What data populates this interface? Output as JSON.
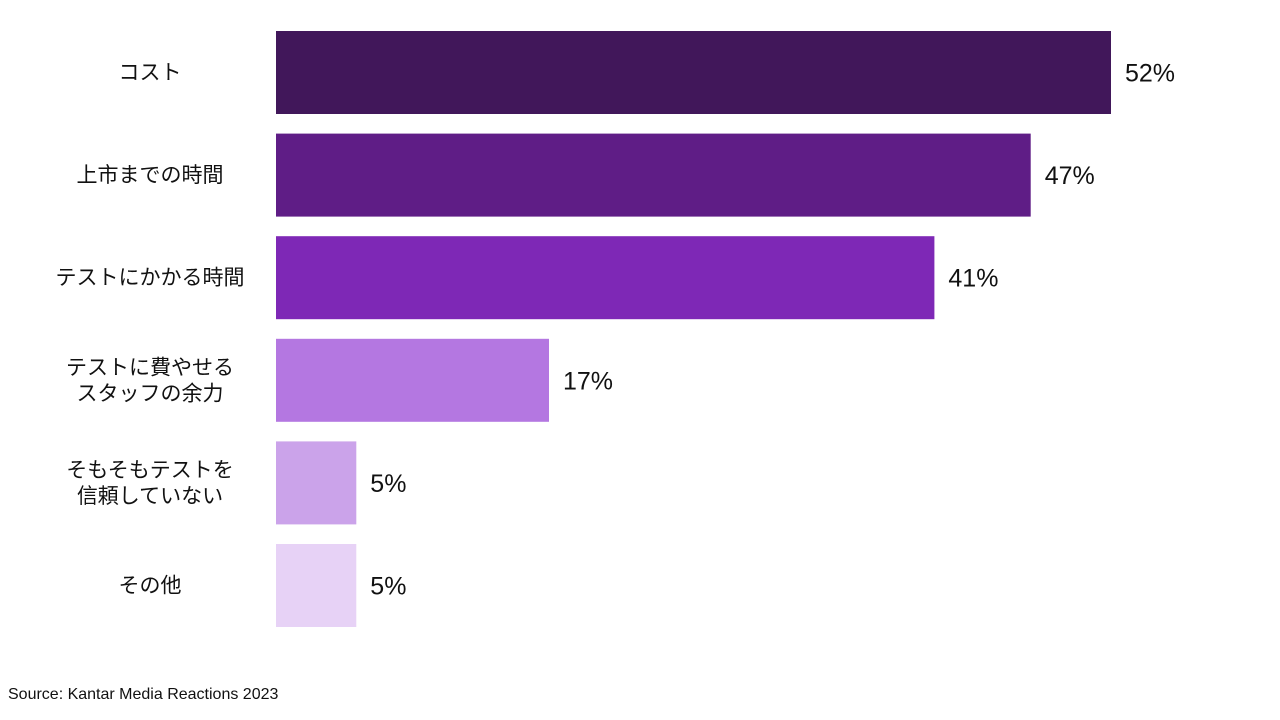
{
  "chart_data": {
    "type": "bar",
    "orientation": "horizontal",
    "categories": [
      [
        "コスト"
      ],
      [
        "上市までの時間"
      ],
      [
        "テストにかかる時間"
      ],
      [
        "テストに費やせる",
        "スタッフの余力"
      ],
      [
        "そもそもテストを",
        "信頼していない"
      ],
      [
        "その他"
      ]
    ],
    "values": [
      52,
      47,
      41,
      17,
      5,
      5
    ],
    "value_labels": [
      "52%",
      "47%",
      "41%",
      "17%",
      "5%",
      "5%"
    ],
    "colors": [
      "#41175a",
      "#5f1d86",
      "#7e28b6",
      "#b477e1",
      "#cba3ea",
      "#e7d2f6"
    ],
    "xlim": [
      0,
      52
    ],
    "grid": false,
    "legend": "none"
  },
  "footer": {
    "source": "Source: Kantar Media Reactions 2023"
  }
}
